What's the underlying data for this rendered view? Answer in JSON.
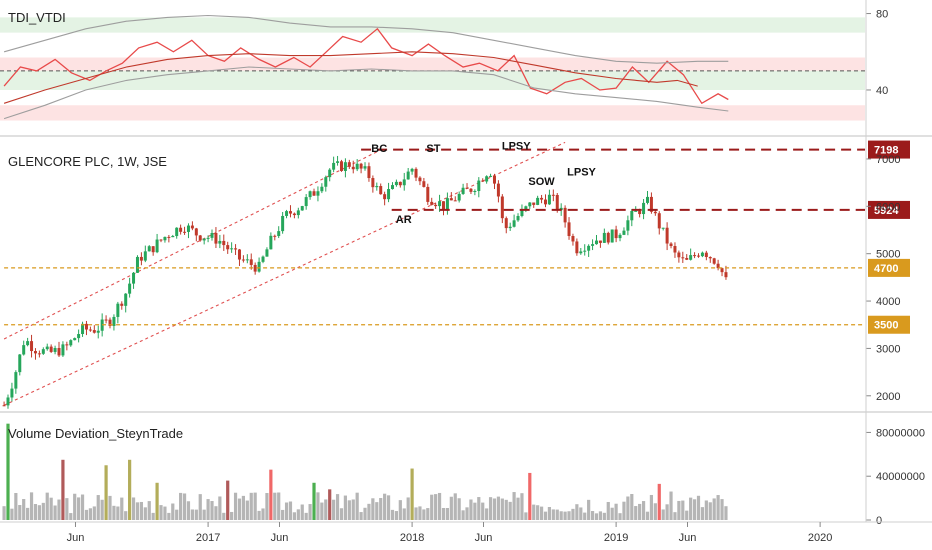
{
  "chart_data": [
    {
      "type": "line",
      "title": "TDI_VTDI",
      "ylim": [
        18,
        85
      ],
      "y_ticks": [
        "80",
        "40"
      ],
      "zones": [
        {
          "from": 70,
          "to": 78,
          "color": "#e4f3e4"
        },
        {
          "from": 50,
          "to": 57,
          "color": "#fde3e3"
        },
        {
          "from": 40,
          "to": 50,
          "color": "#e4f3e4"
        },
        {
          "from": 24,
          "to": 32,
          "color": "#fde3e3"
        }
      ],
      "midline": 50,
      "series": [
        {
          "color": "#e84a4a",
          "values": [
            [
              2016.0,
              42
            ],
            [
              2016.08,
              52
            ],
            [
              2016.16,
              50
            ],
            [
              2016.25,
              56
            ],
            [
              2016.33,
              49
            ],
            [
              2016.42,
              45
            ],
            [
              2016.5,
              50
            ],
            [
              2016.58,
              54
            ],
            [
              2016.66,
              62
            ],
            [
              2016.75,
              65
            ],
            [
              2016.83,
              60
            ],
            [
              2016.92,
              66
            ],
            [
              2017.0,
              58
            ],
            [
              2017.08,
              55
            ],
            [
              2017.16,
              62
            ],
            [
              2017.25,
              56
            ],
            [
              2017.33,
              52
            ],
            [
              2017.42,
              57
            ],
            [
              2017.5,
              52
            ],
            [
              2017.58,
              60
            ],
            [
              2017.66,
              68
            ],
            [
              2017.75,
              65
            ],
            [
              2017.83,
              72
            ],
            [
              2017.9,
              62
            ],
            [
              2018.0,
              58
            ],
            [
              2018.08,
              64
            ],
            [
              2018.16,
              58
            ],
            [
              2018.25,
              52
            ],
            [
              2018.33,
              54
            ],
            [
              2018.42,
              50
            ],
            [
              2018.5,
              58
            ],
            [
              2018.58,
              41
            ],
            [
              2018.66,
              38
            ],
            [
              2018.75,
              44
            ],
            [
              2018.83,
              46
            ],
            [
              2018.92,
              40
            ],
            [
              2019.0,
              41
            ],
            [
              2019.08,
              52
            ],
            [
              2019.16,
              44
            ],
            [
              2019.25,
              55
            ],
            [
              2019.33,
              48
            ],
            [
              2019.42,
              33
            ],
            [
              2019.5,
              38
            ],
            [
              2019.55,
              35
            ]
          ]
        },
        {
          "color": "#c0392b",
          "values": [
            [
              2016.0,
              33
            ],
            [
              2016.2,
              40
            ],
            [
              2016.4,
              46
            ],
            [
              2016.6,
              52
            ],
            [
              2016.8,
              56
            ],
            [
              2017.0,
              58
            ],
            [
              2017.2,
              59
            ],
            [
              2017.4,
              58
            ],
            [
              2017.6,
              58
            ],
            [
              2017.8,
              59
            ],
            [
              2018.0,
              60
            ],
            [
              2018.2,
              59
            ],
            [
              2018.4,
              57
            ],
            [
              2018.6,
              53
            ],
            [
              2018.8,
              49
            ],
            [
              2019.0,
              46
            ],
            [
              2019.2,
              44
            ],
            [
              2019.3,
              45
            ],
            [
              2019.4,
              42
            ]
          ]
        },
        {
          "color": "#9e9e9e",
          "values": [
            [
              2016.0,
              25
            ],
            [
              2016.2,
              32
            ],
            [
              2016.4,
              40
            ],
            [
              2016.6,
              45
            ],
            [
              2016.8,
              48
            ],
            [
              2017.0,
              50
            ],
            [
              2017.2,
              52
            ],
            [
              2017.4,
              51
            ],
            [
              2017.6,
              50
            ],
            [
              2017.8,
              51
            ],
            [
              2018.0,
              50
            ],
            [
              2018.2,
              50
            ],
            [
              2018.4,
              48
            ],
            [
              2018.6,
              41
            ],
            [
              2018.8,
              38
            ],
            [
              2019.0,
              36
            ],
            [
              2019.2,
              34
            ],
            [
              2019.4,
              31
            ],
            [
              2019.55,
              29
            ]
          ]
        },
        {
          "color": "#9e9e9e",
          "values": [
            [
              2016.0,
              60
            ],
            [
              2016.2,
              66
            ],
            [
              2016.4,
              72
            ],
            [
              2016.6,
              76
            ],
            [
              2016.8,
              78
            ],
            [
              2017.0,
              79
            ],
            [
              2017.2,
              78
            ],
            [
              2017.4,
              75
            ],
            [
              2017.6,
              73
            ],
            [
              2017.8,
              73
            ],
            [
              2018.0,
              72
            ],
            [
              2018.2,
              70
            ],
            [
              2018.4,
              66
            ],
            [
              2018.6,
              62
            ],
            [
              2018.8,
              58
            ],
            [
              2019.0,
              55
            ],
            [
              2019.2,
              54
            ],
            [
              2019.4,
              55
            ],
            [
              2019.55,
              55
            ]
          ]
        }
      ]
    },
    {
      "type": "candlestick",
      "title": "GLENCORE PLC, 1W, JSE",
      "ylim": [
        1700,
        7400
      ],
      "y_ticks": [
        "7000",
        "6000",
        "5000",
        "4000",
        "3000",
        "2000"
      ],
      "up_color": "#26a65b",
      "down_color": "#c0392b",
      "close_path": [
        [
          2016.0,
          1800
        ],
        [
          2016.05,
          2400
        ],
        [
          2016.1,
          3200
        ],
        [
          2016.15,
          3000
        ],
        [
          2016.22,
          2900
        ],
        [
          2016.3,
          3000
        ],
        [
          2016.38,
          3400
        ],
        [
          2016.45,
          3400
        ],
        [
          2016.52,
          3600
        ],
        [
          2016.6,
          4200
        ],
        [
          2016.66,
          4900
        ],
        [
          2016.72,
          5100
        ],
        [
          2016.8,
          5400
        ],
        [
          2016.88,
          5600
        ],
        [
          2016.95,
          5400
        ],
        [
          2017.05,
          5300
        ],
        [
          2017.15,
          4900
        ],
        [
          2017.25,
          4700
        ],
        [
          2017.3,
          5200
        ],
        [
          2017.38,
          5800
        ],
        [
          2017.45,
          6000
        ],
        [
          2017.52,
          6300
        ],
        [
          2017.6,
          6800
        ],
        [
          2017.7,
          6900
        ],
        [
          2017.78,
          6700
        ],
        [
          2017.85,
          6200
        ],
        [
          2017.92,
          6400
        ],
        [
          2018.0,
          6800
        ],
        [
          2018.08,
          6200
        ],
        [
          2018.16,
          6000
        ],
        [
          2018.22,
          6200
        ],
        [
          2018.3,
          6400
        ],
        [
          2018.38,
          6800
        ],
        [
          2018.42,
          6300
        ],
        [
          2018.45,
          5500
        ],
        [
          2018.52,
          5800
        ],
        [
          2018.6,
          6100
        ],
        [
          2018.68,
          6200
        ],
        [
          2018.74,
          5800
        ],
        [
          2018.8,
          5100
        ],
        [
          2018.9,
          5300
        ],
        [
          2019.0,
          5400
        ],
        [
          2019.08,
          5800
        ],
        [
          2019.16,
          6100
        ],
        [
          2019.2,
          5700
        ],
        [
          2019.28,
          5000
        ],
        [
          2019.34,
          4800
        ],
        [
          2019.42,
          5100
        ],
        [
          2019.5,
          4800
        ],
        [
          2019.55,
          4300
        ]
      ],
      "levels": [
        {
          "value": 7198,
          "label": "7198",
          "color": "#9b1b1b",
          "dash": "long",
          "from": 2017.75
        },
        {
          "value": 5924,
          "label": "5924",
          "color": "#9b1b1b",
          "dash": "long",
          "from": 2017.9
        },
        {
          "value": 4700,
          "label": "4700",
          "color": "#d99a1e",
          "dash": "short",
          "from": 2016.0
        },
        {
          "value": 3500,
          "label": "3500",
          "color": "#d99a1e",
          "dash": "short",
          "from": 2016.0
        }
      ],
      "channel_lines": [
        {
          "color": "#e05050",
          "points": [
            [
              2016.0,
              3200
            ],
            [
              2017.85,
              7200
            ]
          ]
        },
        {
          "color": "#e05050",
          "points": [
            [
              2016.0,
              1800
            ],
            [
              2018.75,
              7350
            ]
          ]
        }
      ],
      "annotations": [
        {
          "text": "BC",
          "x": 2017.8,
          "y": 7150
        },
        {
          "text": "ST",
          "x": 2018.07,
          "y": 7150
        },
        {
          "text": "LPSY",
          "x": 2018.44,
          "y": 7200
        },
        {
          "text": "SOW",
          "x": 2018.57,
          "y": 6450
        },
        {
          "text": "LPSY",
          "x": 2018.76,
          "y": 6650
        },
        {
          "text": "AR",
          "x": 2017.92,
          "y": 5650
        }
      ]
    },
    {
      "type": "bar",
      "title": "Volume Deviation_SteynTrade",
      "ylim": [
        0,
        95000000
      ],
      "y_ticks": [
        "80000000",
        "40000000",
        "0"
      ],
      "colors": {
        "normal": "#b5b5b5",
        "olive": "#b3ad5a",
        "brown": "#b05a5a",
        "red": "#f06868",
        "green": "#4caf50"
      },
      "spikes": [
        {
          "x": 2016.02,
          "value": 88000000,
          "color": "green"
        },
        {
          "x": 2016.28,
          "value": 55000000,
          "color": "brown"
        },
        {
          "x": 2016.5,
          "value": 50000000,
          "color": "olive"
        },
        {
          "x": 2016.62,
          "value": 55000000,
          "color": "olive"
        },
        {
          "x": 2016.75,
          "value": 34000000,
          "color": "olive"
        },
        {
          "x": 2017.1,
          "value": 36000000,
          "color": "brown"
        },
        {
          "x": 2017.3,
          "value": 46000000,
          "color": "red"
        },
        {
          "x": 2017.52,
          "value": 34000000,
          "color": "green"
        },
        {
          "x": 2017.6,
          "value": 28000000,
          "color": "brown"
        },
        {
          "x": 2018.0,
          "value": 47000000,
          "color": "olive"
        },
        {
          "x": 2018.58,
          "value": 43000000,
          "color": "red"
        },
        {
          "x": 2019.22,
          "value": 33000000,
          "color": "red"
        },
        {
          "x": 2019.55,
          "value": 28000000,
          "color": "red"
        }
      ]
    }
  ],
  "x_axis": {
    "range": [
      2015.98,
      2020.22
    ],
    "ticks": [
      {
        "x": 2016.35,
        "label": "Jun"
      },
      {
        "x": 2017.0,
        "label": "2017"
      },
      {
        "x": 2017.35,
        "label": "Jun"
      },
      {
        "x": 2018.0,
        "label": "2018"
      },
      {
        "x": 2018.35,
        "label": "Jun"
      },
      {
        "x": 2019.0,
        "label": "2019"
      },
      {
        "x": 2019.35,
        "label": "Jun"
      },
      {
        "x": 2020.0,
        "label": "2020"
      }
    ]
  }
}
